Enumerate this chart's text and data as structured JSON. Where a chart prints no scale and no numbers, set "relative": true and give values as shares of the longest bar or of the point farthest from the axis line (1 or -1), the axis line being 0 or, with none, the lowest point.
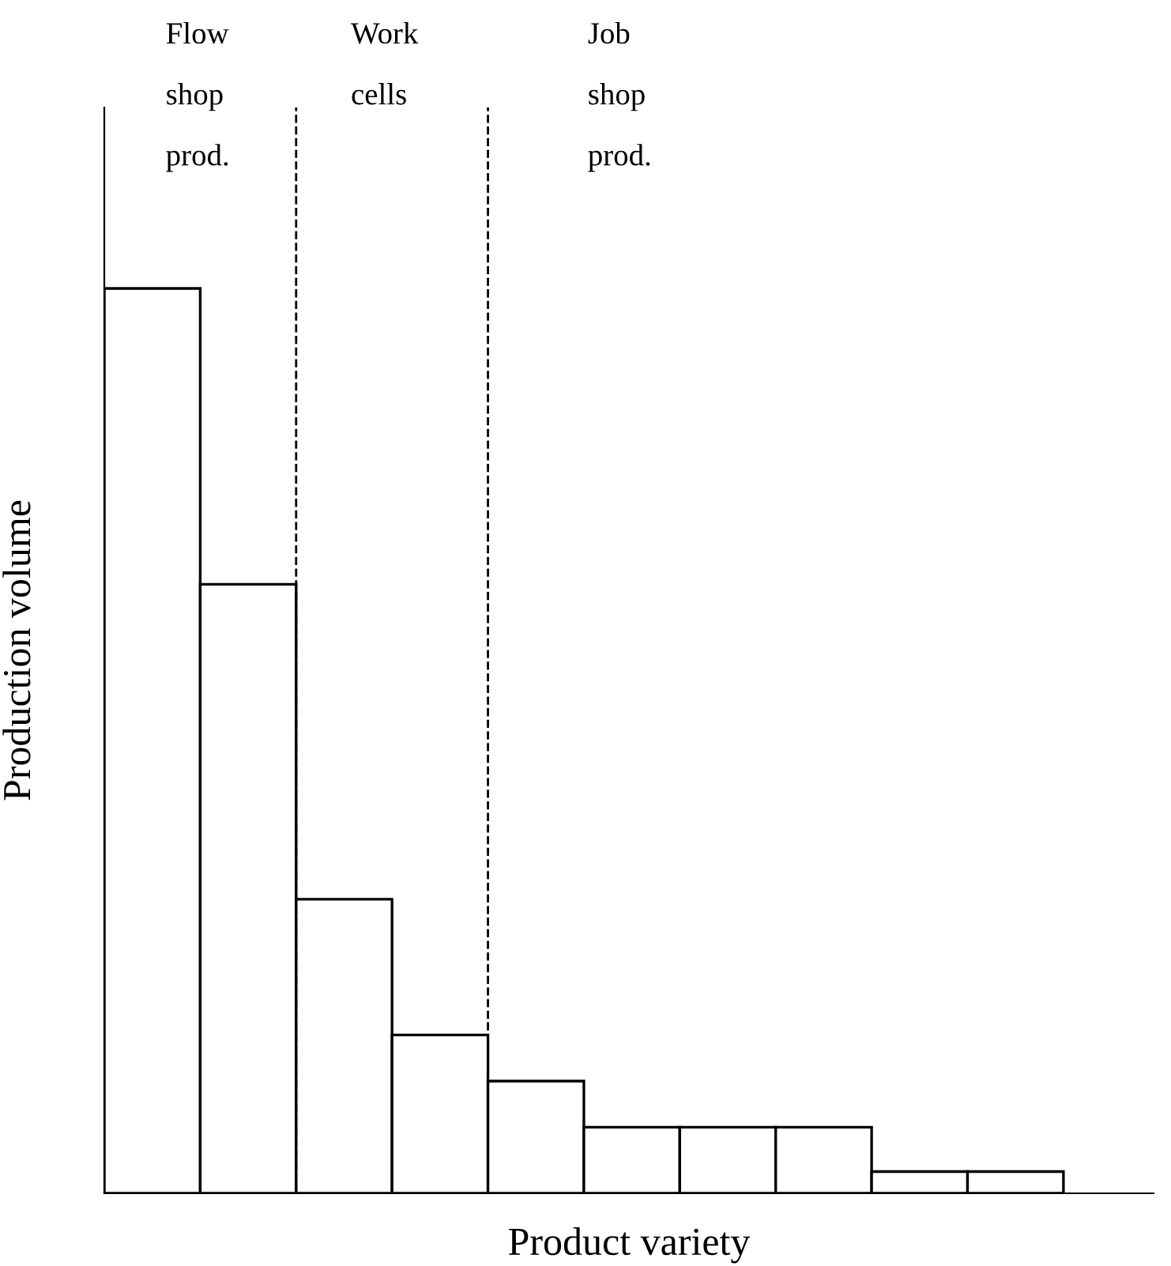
{
  "chart_data": {
    "type": "bar",
    "relative": true,
    "xlabel": "Product variety",
    "ylabel": "Production volume",
    "categories": [
      null,
      null,
      null,
      null,
      null,
      null,
      null,
      null,
      null,
      null
    ],
    "values": [
      1,
      0.673,
      0.325,
      0.175,
      0.124,
      0.073,
      0.073,
      0.073,
      0.024,
      0.024
    ],
    "color": "#ffffff",
    "annotations": [
      "Flow\nshop\nprod.",
      "Work\ncells",
      "Job\nshop\nprod."
    ],
    "grid": false
  }
}
